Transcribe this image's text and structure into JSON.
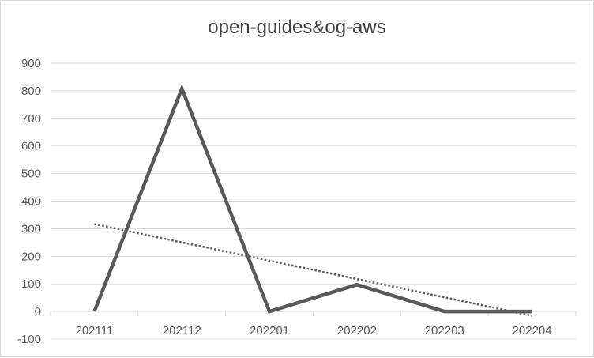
{
  "chart_data": {
    "type": "line",
    "title": "open-guides&og-aws",
    "categories": [
      "202111",
      "202112",
      "202201",
      "202202",
      "202203",
      "202204"
    ],
    "series": [
      {
        "values": [
          0,
          808,
          0,
          97,
          0,
          0
        ]
      }
    ],
    "trendline": {
      "type": "linear",
      "style": "dotted"
    },
    "ylim": [
      -100,
      900
    ],
    "yticks": [
      -100,
      0,
      100,
      200,
      300,
      400,
      500,
      600,
      700,
      800,
      900
    ],
    "grid": true,
    "legend": "none",
    "colors": {
      "line": "#595959",
      "trend": "#595959",
      "grid": "#d9d9d9",
      "axis_text": "#595959",
      "title": "#404040"
    }
  }
}
